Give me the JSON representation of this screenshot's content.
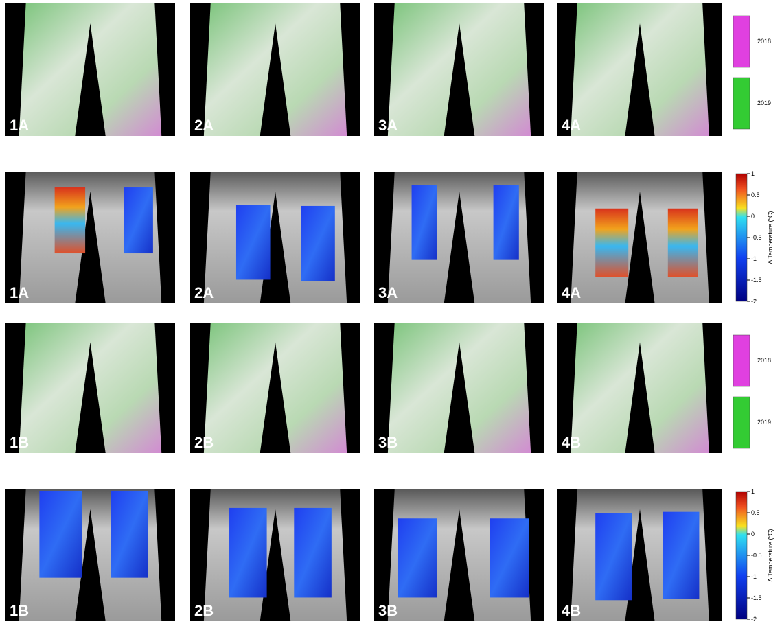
{
  "panel_rows": [
    {
      "kind": "overlay",
      "labels": [
        "1A",
        "2A",
        "3A",
        "4A"
      ]
    },
    {
      "kind": "heat",
      "labels": [
        "1A",
        "2A",
        "3A",
        "4A"
      ]
    },
    {
      "kind": "overlay",
      "labels": [
        "1B",
        "2B",
        "3B",
        "4B"
      ]
    },
    {
      "kind": "heat",
      "labels": [
        "1B",
        "2B",
        "3B",
        "4B"
      ]
    }
  ],
  "legends": [
    [
      {
        "label": "2018",
        "color": "#e040e0"
      },
      {
        "label": "2019",
        "color": "#33cc33"
      }
    ],
    [
      {
        "label": "2018",
        "color": "#e040e0"
      },
      {
        "label": "2019",
        "color": "#33cc33"
      }
    ]
  ],
  "colorbars": [
    {
      "title": "Δ Temperature (°C)",
      "lim": [
        -2,
        1
      ],
      "ticks": [
        1,
        0.5,
        0,
        -0.5,
        -1,
        -1.5,
        -2
      ]
    },
    {
      "title": "Δ Temperature (°C)",
      "lim": [
        -2,
        1
      ],
      "ticks": [
        1,
        0.5,
        0,
        -0.5,
        -1,
        -1.5,
        -2
      ]
    }
  ]
}
